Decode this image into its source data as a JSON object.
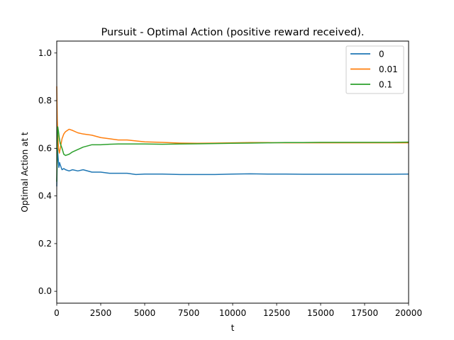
{
  "chart_data": {
    "type": "line",
    "title": "Pursuit - Optimal Action (positive reward received).",
    "xlabel": "t",
    "ylabel": "Optimal Action at t",
    "xlim": [
      0,
      20000
    ],
    "ylim": [
      -0.05,
      1.05
    ],
    "x_ticks": [
      0,
      2500,
      5000,
      7500,
      10000,
      12500,
      15000,
      17500,
      20000
    ],
    "y_ticks": [
      0.0,
      0.2,
      0.4,
      0.6,
      0.8,
      1.0
    ],
    "x_tick_labels": [
      "0",
      "2500",
      "5000",
      "7500",
      "10000",
      "12500",
      "15000",
      "17500",
      "20000"
    ],
    "y_tick_labels": [
      "0.0",
      "0.2",
      "0.4",
      "0.6",
      "0.8",
      "1.0"
    ],
    "grid": false,
    "legend_position": "top-right",
    "series": [
      {
        "name": "0",
        "color": "#1f77b4",
        "x": [
          0,
          40,
          80,
          120,
          160,
          200,
          300,
          400,
          500,
          700,
          900,
          1200,
          1500,
          2000,
          2500,
          3000,
          3500,
          4000,
          4500,
          5000,
          6000,
          7000,
          8000,
          9000,
          10000,
          11000,
          12000,
          13000,
          14000,
          15000,
          16000,
          17000,
          18000,
          19000,
          20000
        ],
        "y": [
          0.44,
          0.6,
          0.56,
          0.52,
          0.54,
          0.53,
          0.51,
          0.515,
          0.51,
          0.505,
          0.51,
          0.505,
          0.51,
          0.5,
          0.5,
          0.495,
          0.495,
          0.495,
          0.49,
          0.492,
          0.492,
          0.49,
          0.49,
          0.49,
          0.492,
          0.493,
          0.492,
          0.492,
          0.491,
          0.491,
          0.491,
          0.491,
          0.491,
          0.491,
          0.492
        ]
      },
      {
        "name": "0.01",
        "color": "#ff7f0e",
        "x": [
          0,
          30,
          60,
          100,
          150,
          200,
          300,
          400,
          500,
          700,
          900,
          1200,
          1500,
          2000,
          2500,
          3000,
          3500,
          4000,
          5000,
          6000,
          7000,
          8000,
          9000,
          10000,
          11000,
          12000,
          13000,
          14000,
          15000,
          16000,
          17000,
          18000,
          19000,
          20000
        ],
        "y": [
          0.86,
          0.72,
          0.66,
          0.6,
          0.58,
          0.6,
          0.64,
          0.66,
          0.67,
          0.68,
          0.675,
          0.665,
          0.66,
          0.655,
          0.645,
          0.64,
          0.635,
          0.635,
          0.627,
          0.625,
          0.622,
          0.621,
          0.622,
          0.623,
          0.624,
          0.624,
          0.623,
          0.623,
          0.623,
          0.623,
          0.623,
          0.623,
          0.623,
          0.623
        ]
      },
      {
        "name": "0.1",
        "color": "#2ca02c",
        "x": [
          0,
          30,
          60,
          100,
          150,
          200,
          300,
          400,
          500,
          700,
          900,
          1200,
          1500,
          2000,
          2500,
          3000,
          3500,
          4000,
          5000,
          6000,
          7000,
          8000,
          9000,
          10000,
          11000,
          12000,
          13000,
          14000,
          15000,
          16000,
          17000,
          18000,
          19000,
          20000
        ],
        "y": [
          0.46,
          0.62,
          0.69,
          0.67,
          0.64,
          0.62,
          0.6,
          0.575,
          0.57,
          0.575,
          0.585,
          0.595,
          0.605,
          0.615,
          0.615,
          0.617,
          0.618,
          0.618,
          0.618,
          0.617,
          0.618,
          0.619,
          0.62,
          0.621,
          0.622,
          0.623,
          0.624,
          0.624,
          0.625,
          0.625,
          0.625,
          0.625,
          0.625,
          0.626
        ]
      }
    ]
  }
}
